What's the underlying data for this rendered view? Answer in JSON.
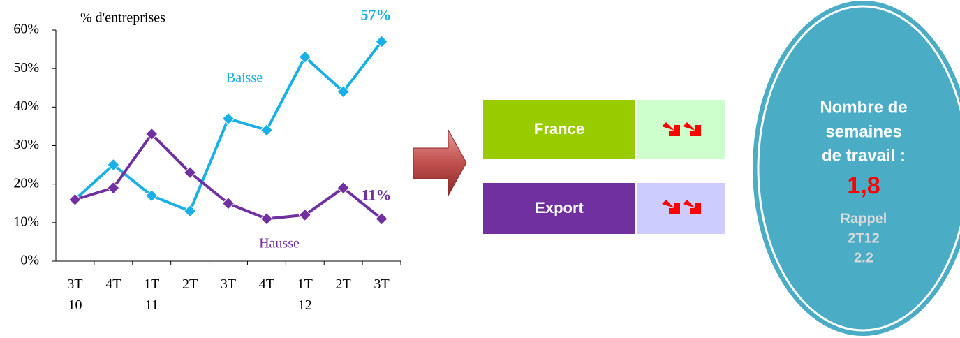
{
  "chart_data": {
    "type": "line",
    "y_label": "% d'entreprises",
    "categories": [
      "3T\n10",
      "4T",
      "1T\n11",
      "2T",
      "3T",
      "4T",
      "1T\n12",
      "2T",
      "3T"
    ],
    "series": [
      {
        "name": "Baisse",
        "color": "#1aafe6",
        "values": [
          16,
          25,
          17,
          13,
          37,
          34,
          53,
          44,
          57
        ],
        "value_labels": [
          null,
          null,
          null,
          null,
          null,
          null,
          null,
          null,
          "57%"
        ]
      },
      {
        "name": "Hausse",
        "color": "#7030a0",
        "values": [
          16,
          19,
          33,
          23,
          15,
          11,
          12,
          19,
          11
        ],
        "value_labels": [
          null,
          null,
          null,
          null,
          null,
          null,
          null,
          null,
          "11%"
        ]
      }
    ],
    "ylim": [
      0,
      60
    ],
    "yticks": [
      {
        "value": 0,
        "label": "0%"
      },
      {
        "value": 10,
        "label": "10%"
      },
      {
        "value": 20,
        "label": "20%"
      },
      {
        "value": 30,
        "label": "30%"
      },
      {
        "value": 40,
        "label": "40%"
      },
      {
        "value": 50,
        "label": "50%"
      },
      {
        "value": 60,
        "label": "60%"
      }
    ]
  },
  "panel": {
    "rows": [
      {
        "label": "France"
      },
      {
        "label": "Export"
      }
    ],
    "ellipse": {
      "lines": [
        "Nombre de",
        "semaines",
        "de travail :"
      ],
      "value": "1,8",
      "recall": [
        "Rappel",
        "2T12",
        "2.2"
      ]
    }
  }
}
